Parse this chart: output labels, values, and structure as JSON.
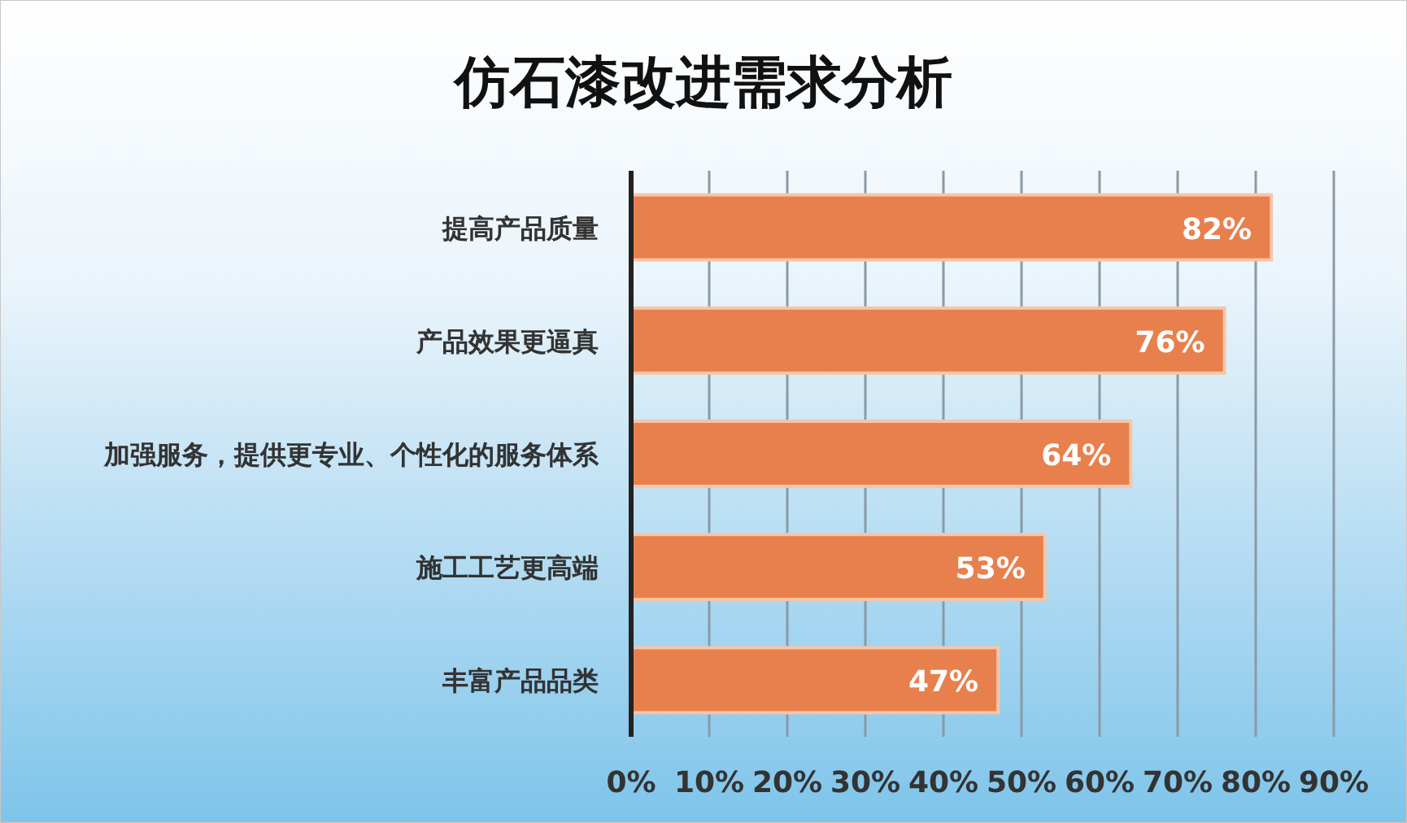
{
  "chart_data": {
    "type": "bar",
    "orientation": "horizontal",
    "title": "仿石漆改进需求分析",
    "categories": [
      "提高产品质量",
      "产品效果更逼真",
      "加强服务，提供更专业、个性化的服务体系",
      "施工工艺更高端",
      "丰富产品品类"
    ],
    "values": [
      82,
      76,
      64,
      53,
      47
    ],
    "value_labels": [
      "82%",
      "76%",
      "64%",
      "53%",
      "47%"
    ],
    "color": "#e8804e",
    "xlim": [
      0,
      90
    ],
    "xticks": [
      {
        "value": 0,
        "label": "0%"
      },
      {
        "value": 10,
        "label": "10%"
      },
      {
        "value": 20,
        "label": "20%"
      },
      {
        "value": 30,
        "label": "30%"
      },
      {
        "value": 40,
        "label": "40%"
      },
      {
        "value": 50,
        "label": "50%"
      },
      {
        "value": 60,
        "label": "60%"
      },
      {
        "value": 70,
        "label": "70%"
      },
      {
        "value": 80,
        "label": "80%"
      },
      {
        "value": 90,
        "label": "90%"
      }
    ],
    "grid": "x"
  }
}
